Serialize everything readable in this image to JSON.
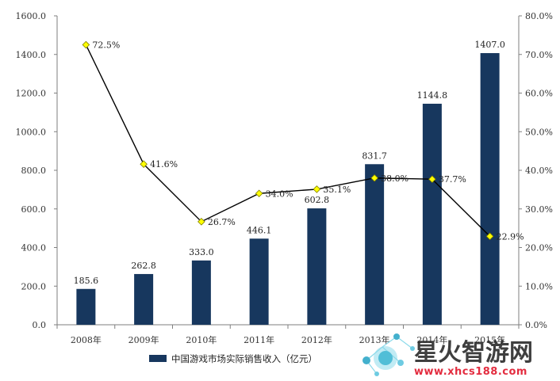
{
  "chart_data": {
    "type": "bar",
    "categories": [
      "2008年",
      "2009年",
      "2010年",
      "2011年",
      "2012年",
      "2013年",
      "2014年",
      "2015年"
    ],
    "series": [
      {
        "name": "中国游戏市场实际销售收入（亿元）",
        "type": "bar",
        "axis": "left",
        "values": [
          185.6,
          262.8,
          333.0,
          446.1,
          602.8,
          831.7,
          1144.8,
          1407.0
        ],
        "labels": [
          "185.6",
          "262.8",
          "333.0",
          "446.1",
          "602.8",
          "831.7",
          "1144.8",
          "1407.0"
        ]
      },
      {
        "name": "",
        "type": "line",
        "axis": "right",
        "values": [
          72.5,
          41.6,
          26.7,
          34.0,
          35.1,
          38.0,
          37.7,
          22.9
        ],
        "labels": [
          "72.5%",
          "41.6%",
          "26.7%",
          "34.0%",
          "35.1%",
          "38.0%",
          "37.7%",
          "22.9%"
        ]
      }
    ],
    "left_axis": {
      "ylim": [
        0,
        1600
      ],
      "ticks": [
        "0.0",
        "200.0",
        "400.0",
        "600.0",
        "800.0",
        "1000.0",
        "1200.0",
        "1400.0",
        "1600.0"
      ]
    },
    "right_axis": {
      "ylim": [
        0,
        80
      ],
      "ticks": [
        "0.0%",
        "10.0%",
        "20.0%",
        "30.0%",
        "40.0%",
        "50.0%",
        "60.0%",
        "70.0%",
        "80.0%"
      ]
    },
    "title": "",
    "xlabel": "",
    "ylabel": "",
    "grid": false,
    "legend_position": "bottom-center",
    "colors": {
      "bar_fill": "#17375e",
      "line_stroke": "#000000",
      "marker_fill": "#ffff00",
      "marker_stroke": "#7f7f00"
    }
  },
  "watermark": {
    "title": "星火智游网",
    "url": "www.xhcs188.com"
  }
}
